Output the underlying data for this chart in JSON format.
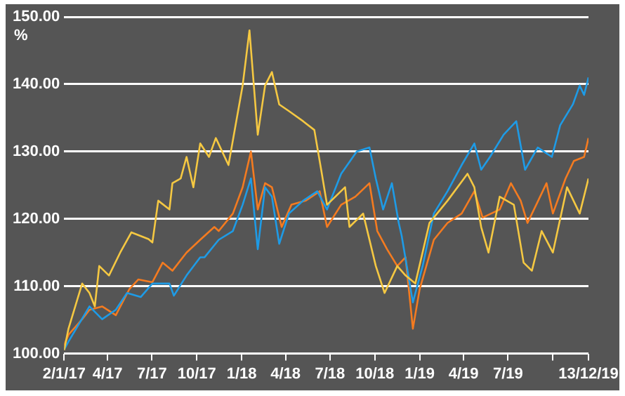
{
  "chart_data": {
    "type": "line",
    "ylabel": "%",
    "xlim": [
      "2017-01-02",
      "2019-12-13"
    ],
    "ylim": [
      100,
      150
    ],
    "xticks": [
      {
        "value": "2017-01-02",
        "label": "2/1/17"
      },
      {
        "value": "2017-04-01",
        "label": "4/17"
      },
      {
        "value": "2017-07-01",
        "label": "7/17"
      },
      {
        "value": "2017-10-01",
        "label": "10/17"
      },
      {
        "value": "2018-01-01",
        "label": "1/18"
      },
      {
        "value": "2018-04-01",
        "label": "4/18"
      },
      {
        "value": "2018-07-01",
        "label": "7/18"
      },
      {
        "value": "2018-10-01",
        "label": "10/18"
      },
      {
        "value": "2019-01-01",
        "label": "1/19"
      },
      {
        "value": "2019-04-01",
        "label": "4/19"
      },
      {
        "value": "2019-07-01",
        "label": "7/19"
      },
      {
        "value": "2019-10-01",
        "label": null
      },
      {
        "value": "2019-12-13",
        "label": "13/12/19"
      }
    ],
    "yticks": [
      {
        "value": 100,
        "label": "100.00"
      },
      {
        "value": 110,
        "label": "110.00"
      },
      {
        "value": 120,
        "label": "120.00"
      },
      {
        "value": 130,
        "label": "130.00"
      },
      {
        "value": 140,
        "label": "140.00"
      },
      {
        "value": 150,
        "label": "150.00"
      }
    ],
    "grid": "y",
    "series": [
      {
        "color": "#f5c842",
        "x": [
          "2017-01-02",
          "2017-01-11",
          "2017-02-08",
          "2017-02-23",
          "2017-03-06",
          "2017-03-15",
          "2017-04-04",
          "2017-04-27",
          "2017-05-20",
          "2017-06-24",
          "2017-07-02",
          "2017-07-14",
          "2017-08-06",
          "2017-08-12",
          "2017-08-29",
          "2017-09-10",
          "2017-09-24",
          "2017-10-08",
          "2017-10-26",
          "2017-11-09",
          "2017-12-05",
          "2018-01-03",
          "2018-01-17",
          "2018-02-03",
          "2018-02-18",
          "2018-03-04",
          "2018-03-19",
          "2018-04-08",
          "2018-05-07",
          "2018-05-30",
          "2018-06-13",
          "2018-06-25",
          "2018-08-01",
          "2018-08-10",
          "2018-09-07",
          "2018-10-03",
          "2018-10-21",
          "2018-11-16",
          "2018-12-03",
          "2018-12-23",
          "2019-01-21",
          "2019-02-27",
          "2019-04-09",
          "2019-04-23",
          "2019-05-07",
          "2019-05-22",
          "2019-06-14",
          "2019-07-13",
          "2019-08-02",
          "2019-08-19",
          "2019-09-08",
          "2019-10-01",
          "2019-10-30",
          "2019-11-25",
          "2019-12-13"
        ],
        "values": [
          100.5,
          103.7,
          110.4,
          109,
          107,
          113,
          111.6,
          115,
          118,
          117,
          116.5,
          122.7,
          121.4,
          125.3,
          126,
          129.2,
          124.7,
          131.2,
          129.2,
          132,
          128,
          139.8,
          148,
          132.5,
          139.8,
          141.8,
          137,
          136,
          134.5,
          133.2,
          127.3,
          122.1,
          124.7,
          118.8,
          120.8,
          113,
          109,
          113,
          111.6,
          110.4,
          119.4,
          122.7,
          126.7,
          124.7,
          118.8,
          115,
          123.3,
          122.1,
          113.5,
          112.3,
          118.2,
          115,
          124.7,
          120.8,
          126
        ]
      },
      {
        "color": "#1e9be6",
        "x": [
          "2017-01-02",
          "2017-01-11",
          "2017-02-23",
          "2017-03-21",
          "2017-04-18",
          "2017-05-11",
          "2017-06-08",
          "2017-07-02",
          "2017-08-06",
          "2017-08-15",
          "2017-09-10",
          "2017-10-08",
          "2017-10-17",
          "2017-11-15",
          "2017-12-14",
          "2018-01-03",
          "2018-01-20",
          "2018-02-03",
          "2018-02-18",
          "2018-03-04",
          "2018-03-19",
          "2018-04-08",
          "2018-05-07",
          "2018-06-05",
          "2018-06-25",
          "2018-07-24",
          "2018-08-25",
          "2018-09-20",
          "2018-10-03",
          "2018-10-18",
          "2018-11-05",
          "2018-11-19",
          "2018-11-25",
          "2018-12-18",
          "2019-01-07",
          "2019-01-30",
          "2019-02-27",
          "2019-03-28",
          "2019-04-23",
          "2019-05-07",
          "2019-05-25",
          "2019-06-22",
          "2019-07-18",
          "2019-08-05",
          "2019-08-31",
          "2019-09-29",
          "2019-10-16",
          "2019-11-11",
          "2019-11-25",
          "2019-12-04",
          "2019-12-13"
        ],
        "values": [
          100.6,
          101.8,
          107,
          105.1,
          106.5,
          109,
          108.4,
          110.4,
          110.4,
          108.6,
          111.6,
          114.3,
          114.3,
          116.9,
          118.2,
          122.1,
          126,
          115.5,
          124.7,
          123.3,
          116.3,
          120.8,
          122.7,
          124.1,
          121.4,
          126.7,
          130,
          130.6,
          126,
          121.4,
          125.3,
          119.4,
          117.5,
          107.6,
          113,
          120.8,
          124.1,
          128,
          131.2,
          127.3,
          129.2,
          132.5,
          134.5,
          127.3,
          130.6,
          129.2,
          133.9,
          137,
          139.8,
          138.4,
          141
        ]
      },
      {
        "color": "#f47b20",
        "x": [
          "2017-01-02",
          "2017-01-11",
          "2017-02-08",
          "2017-02-23",
          "2017-03-21",
          "2017-04-18",
          "2017-05-16",
          "2017-06-03",
          "2017-07-02",
          "2017-07-23",
          "2017-08-12",
          "2017-09-10",
          "2017-10-08",
          "2017-11-06",
          "2017-11-15",
          "2017-12-14",
          "2018-01-03",
          "2018-01-20",
          "2018-02-03",
          "2018-02-18",
          "2018-03-04",
          "2018-03-24",
          "2018-04-13",
          "2018-05-12",
          "2018-06-10",
          "2018-06-25",
          "2018-07-24",
          "2018-08-22",
          "2018-09-20",
          "2018-10-06",
          "2018-10-26",
          "2018-11-16",
          "2018-12-03",
          "2018-12-18",
          "2019-01-01",
          "2019-01-30",
          "2019-02-27",
          "2019-03-28",
          "2019-04-23",
          "2019-05-10",
          "2019-06-14",
          "2019-07-07",
          "2019-07-27",
          "2019-08-10",
          "2019-09-18",
          "2019-10-01",
          "2019-10-27",
          "2019-11-13",
          "2019-12-04",
          "2019-12-13"
        ],
        "values": [
          101.2,
          102.8,
          105.1,
          106.5,
          107,
          105.7,
          109.6,
          111,
          110.6,
          113.5,
          112.3,
          115,
          116.9,
          118.8,
          118.2,
          120.8,
          124.7,
          130,
          121.4,
          125.3,
          124.7,
          118.8,
          122.1,
          122.7,
          124.1,
          118.8,
          122.1,
          123.3,
          125.3,
          118.2,
          115.5,
          113,
          114.3,
          103.7,
          109.6,
          116.9,
          119.4,
          120.8,
          124.1,
          120.2,
          121.4,
          125.3,
          122.7,
          119.4,
          125.3,
          120.8,
          126,
          128.6,
          129.2,
          132
        ]
      }
    ]
  }
}
